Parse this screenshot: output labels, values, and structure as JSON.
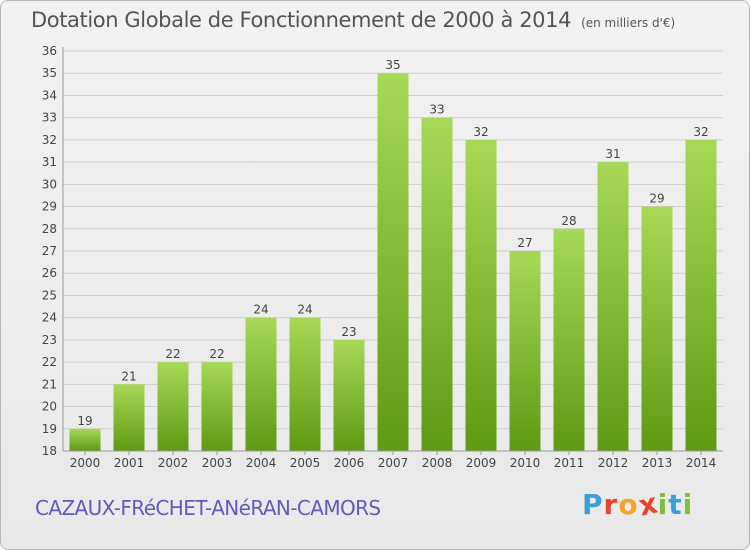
{
  "title": "Dotation Globale de Fonctionnement de 2000 à 2014",
  "unit_note": "(en milliers d'€)",
  "commune": "CAZAUX-FRéCHET-ANéRAN-CAMORS",
  "logo": {
    "text": "Proxiti",
    "letters": [
      "P",
      "r",
      "o",
      "x",
      "i",
      "t",
      "i"
    ],
    "colors": [
      "#3aa0d8",
      "#e8432e",
      "#f5a623",
      "#e8432e",
      "#7bbf3a",
      "#3aa0d8",
      "#7bbf3a"
    ]
  },
  "colors": {
    "bar_light": "#a8d858",
    "bar_dark": "#5e9a14",
    "grid": "#cfcfcf",
    "axis": "#999999"
  },
  "chart_data": {
    "type": "bar",
    "categories": [
      "2000",
      "2001",
      "2002",
      "2003",
      "2004",
      "2005",
      "2006",
      "2007",
      "2008",
      "2009",
      "2010",
      "2011",
      "2012",
      "2013",
      "2014"
    ],
    "values": [
      19,
      21,
      22,
      22,
      24,
      24,
      23,
      35,
      33,
      32,
      27,
      28,
      31,
      29,
      32
    ],
    "data_labels": [
      "19",
      "21",
      "22",
      "22",
      "24",
      "24",
      "23",
      "35",
      "33",
      "32",
      "27",
      "28",
      "31",
      "29",
      "32"
    ],
    "title": "Dotation Globale de Fonctionnement de 2000 à 2014",
    "ylim": [
      18,
      36
    ],
    "yticks": [
      "18",
      "19",
      "20",
      "21",
      "22",
      "23",
      "24",
      "25",
      "26",
      "27",
      "28",
      "29",
      "30",
      "31",
      "32",
      "33",
      "34",
      "35",
      "36"
    ],
    "grid": true,
    "legend": "none"
  }
}
